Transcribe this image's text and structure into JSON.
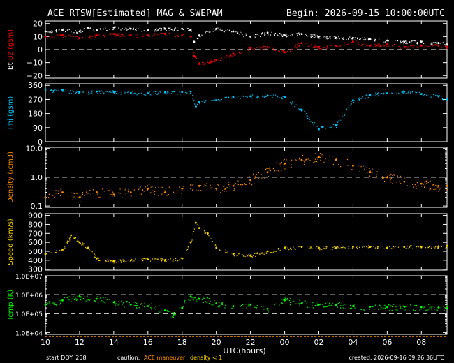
{
  "header": {
    "title": "ACE RTSW[Estimated] MAG & SWEPAM",
    "begin": "Begin: 2026-09-15 10:00:00UTC"
  },
  "footer": {
    "start_doy": "start DOY: 258",
    "caution_label": "caution:",
    "caution_maneuver": "ACE maneuver",
    "caution_density": "density < 1",
    "created": "created: 2026-09-16 09:26:36UTC"
  },
  "colors": {
    "background": "#000000",
    "axes": "#ffffff",
    "bt": "#ffffff",
    "bz": "#ff0000",
    "phi": "#00c8ff",
    "density": "#ff8c00",
    "speed": "#ffd700",
    "temp": "#00ff00"
  },
  "chart_data": {
    "type": "scatter",
    "x_axis": {
      "label": "UTC(hours)",
      "range_hours_from_begin": [
        0,
        23.5
      ],
      "tick_labels": [
        "10",
        "12",
        "14",
        "16",
        "18",
        "20",
        "22",
        "00",
        "02",
        "04",
        "06",
        "08",
        "10"
      ]
    },
    "panels": [
      {
        "key": "mag",
        "ylabel_parts": [
          {
            "text": "Bt",
            "color": "#ffffff"
          },
          {
            "text": "Bz",
            "color": "#ff0000"
          },
          {
            "text": "(gsm)",
            "color": "#ff0000"
          }
        ],
        "scale": "linear",
        "ylim": [
          -22,
          22
        ],
        "yticks": [
          -20,
          -10,
          0,
          10,
          20
        ],
        "ytick_labels": [
          "−20",
          "−10",
          "0",
          "10",
          "20"
        ],
        "ref_lines": [
          0
        ],
        "series": [
          {
            "name": "Bt",
            "color": "#ffffff",
            "x": [
              0,
              1,
              2,
              2.5,
              3,
              4,
              5,
              6,
              7,
              8,
              8.5,
              8.7,
              9,
              10,
              11,
              12,
              13,
              14,
              15,
              16,
              17,
              18,
              19,
              20,
              21,
              22,
              23,
              23.5
            ],
            "y": [
              14,
              15,
              14,
              17,
              15,
              17,
              16,
              15,
              16,
              16,
              15,
              6,
              11,
              16,
              14,
              10,
              13,
              11,
              12,
              10,
              9,
              9,
              8,
              7,
              6,
              6,
              5,
              4
            ]
          },
          {
            "name": "Bz",
            "color": "#ff0000",
            "x": [
              0,
              1,
              2,
              3,
              4,
              5,
              6,
              7,
              8,
              8.5,
              8.7,
              9,
              10,
              11,
              12,
              13,
              14,
              15,
              16,
              17,
              18,
              19,
              20,
              21,
              22,
              23,
              23.5
            ],
            "y": [
              10,
              11,
              9,
              11,
              12,
              11,
              11,
              12,
              11,
              10,
              -5,
              -11,
              -8,
              -3,
              1,
              2,
              -2,
              5,
              2,
              3,
              6,
              3,
              4,
              2,
              3,
              3,
              2
            ]
          }
        ]
      },
      {
        "key": "phi",
        "ylabel_parts": [
          {
            "text": "Phi",
            "color": "#00c8ff"
          },
          {
            "text": "(gsm)",
            "color": "#00c8ff"
          }
        ],
        "scale": "linear",
        "ylim": [
          0,
          370
        ],
        "yticks": [
          0,
          90,
          180,
          270,
          360
        ],
        "ytick_labels": [
          "0",
          "90",
          "180",
          "270",
          "360"
        ],
        "ref_lines": [],
        "series": [
          {
            "name": "Phi",
            "color": "#00c8ff",
            "x": [
              0,
              0.5,
              1,
              2,
              3,
              4,
              5,
              6,
              7,
              8,
              8.5,
              8.8,
              9,
              10,
              11,
              12,
              13,
              14,
              15,
              16,
              16.2,
              17,
              18,
              19,
              20,
              21,
              22,
              23,
              23.5
            ],
            "y": [
              335,
              325,
              330,
              315,
              320,
              318,
              312,
              310,
              315,
              318,
              320,
              225,
              255,
              265,
              285,
              290,
              295,
              285,
              200,
              80,
              95,
              105,
              265,
              300,
              310,
              320,
              305,
              290,
              270
            ]
          }
        ]
      },
      {
        "key": "density",
        "ylabel_parts": [
          {
            "text": "Density",
            "color": "#ff8c00"
          },
          {
            "text": "(/cm3)",
            "color": "#ff8c00"
          }
        ],
        "scale": "log",
        "ylim": [
          0.09,
          11
        ],
        "yticks": [
          0.1,
          1.0,
          10.0
        ],
        "ytick_labels": [
          "0.1",
          "1.0",
          "10.0"
        ],
        "ref_lines": [
          1.0
        ],
        "series": [
          {
            "name": "Density",
            "color": "#ff8c00",
            "x": [
              0,
              1,
              2,
              3,
              4,
              5,
              6,
              7,
              8,
              9,
              10,
              11,
              12,
              13,
              14,
              15,
              16,
              17,
              18,
              19,
              20,
              21,
              22,
              23,
              23.5
            ],
            "y": [
              0.2,
              0.3,
              0.2,
              0.3,
              0.25,
              0.3,
              0.4,
              0.3,
              0.4,
              0.5,
              0.4,
              0.5,
              0.8,
              1.5,
              3,
              4,
              5,
              4,
              2.5,
              1.5,
              1,
              0.7,
              0.6,
              0.5,
              0.5
            ]
          }
        ]
      },
      {
        "key": "speed",
        "ylabel_parts": [
          {
            "text": "Speed",
            "color": "#ffd700"
          },
          {
            "text": "(km/s)",
            "color": "#ffd700"
          }
        ],
        "scale": "linear",
        "ylim": [
          290,
          920
        ],
        "yticks": [
          300,
          400,
          500,
          600,
          700,
          800,
          900
        ],
        "ytick_labels": [
          "300",
          "400",
          "500",
          "600",
          "700",
          "800",
          "900"
        ],
        "ref_lines": [],
        "series": [
          {
            "name": "Speed",
            "color": "#ffd700",
            "x": [
              0,
              1,
              1.5,
              2,
              2.5,
              3,
              4,
              5,
              6,
              7,
              8,
              8.5,
              8.8,
              9,
              9.5,
              10,
              11,
              12,
              13,
              14,
              15,
              16,
              17,
              18,
              19,
              20,
              21,
              22,
              23,
              23.5
            ],
            "y": [
              470,
              520,
              680,
              600,
              540,
              420,
              390,
              400,
              410,
              400,
              420,
              600,
              820,
              760,
              700,
              540,
              470,
              450,
              500,
              540,
              550,
              540,
              540,
              550,
              550,
              540,
              550,
              550,
              550,
              560
            ]
          }
        ]
      },
      {
        "key": "temp",
        "ylabel_parts": [
          {
            "text": "Temp",
            "color": "#00ff00"
          },
          {
            "text": "(K)",
            "color": "#00ff00"
          }
        ],
        "scale": "log",
        "ylim": [
          8000,
          10000000
        ],
        "yticks": [
          10000,
          100000,
          1000000,
          10000000
        ],
        "ytick_labels": [
          "1.0E+04",
          "1.0E+05",
          "1.0E+06",
          "1.0E+07"
        ],
        "ref_lines": [
          100000,
          1000000
        ],
        "series": [
          {
            "name": "Temp",
            "color": "#00ff00",
            "x": [
              0,
              1,
              2,
              3,
              4,
              5,
              6,
              7,
              7.5,
              8,
              8.5,
              9,
              10,
              11,
              12,
              13,
              14,
              15,
              16,
              17,
              18,
              19,
              20,
              21,
              22,
              23,
              23.5
            ],
            "y": [
              300000,
              500000,
              800000,
              600000,
              400000,
              300000,
              250000,
              150000,
              90000,
              200000,
              800000,
              600000,
              350000,
              250000,
              300000,
              180000,
              500000,
              350000,
              300000,
              280000,
              250000,
              230000,
              220000,
              230000,
              220000,
              210000,
              200000
            ]
          }
        ]
      }
    ]
  }
}
